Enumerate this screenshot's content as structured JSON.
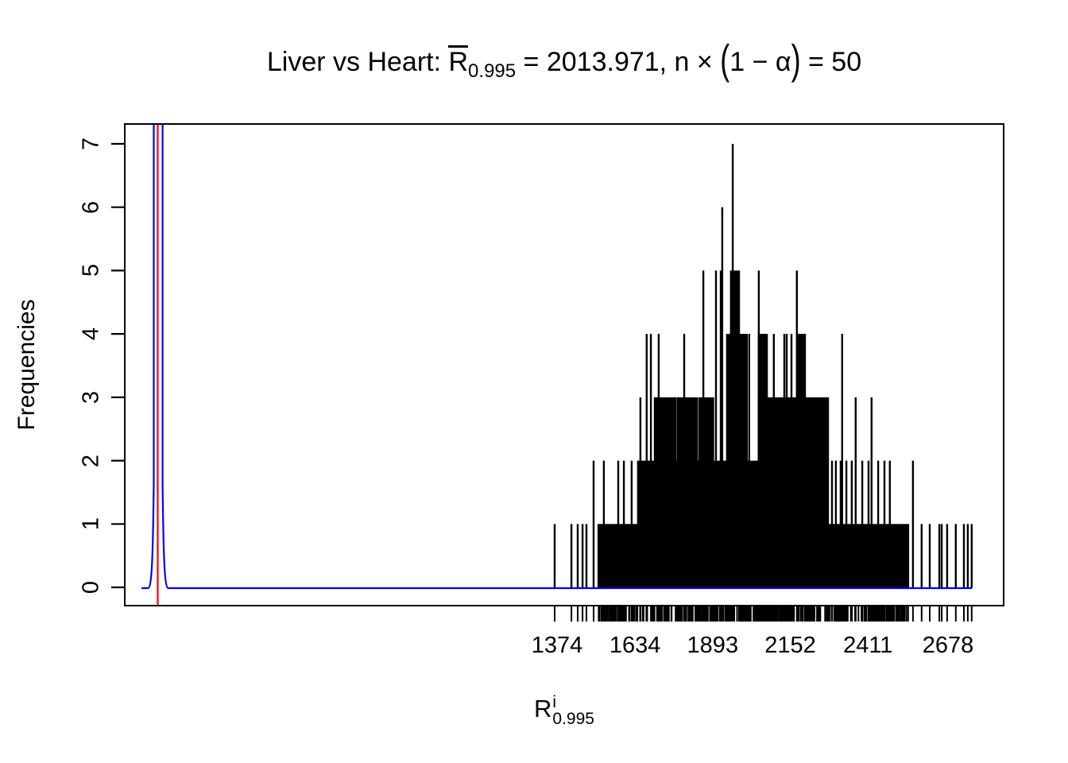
{
  "title": {
    "prefix": "Liver vs Heart: ",
    "r": "R",
    "r_sub": "0.995",
    "mid": " = 2013.971, n ",
    "times": "× ",
    "paren_open": "(",
    "paren_body": "1 − α",
    "paren_close": ")",
    "tail": " = 50"
  },
  "y_axis": {
    "label": "Frequencies",
    "ticks": [
      0,
      1,
      2,
      3,
      4,
      5,
      6,
      7
    ]
  },
  "x_axis": {
    "label_base": "R",
    "label_sup": "i",
    "label_sub": "0.995",
    "tick_values": [
      1374,
      1634,
      1893,
      2152,
      2411,
      2678
    ]
  },
  "chart_data": {
    "type": "bar",
    "subtype": "type-h spike plot of frequencies with rug of ticks at every unique value",
    "title": "Liver vs Heart: mean R_0.995 = 2013.971, n x (1 - alpha) = 50",
    "xlabel": "R^i_0.995",
    "ylabel": "Frequencies",
    "ylim": [
      0,
      7
    ],
    "x_tick_labels": [
      1374,
      1634,
      1893,
      2152,
      2411,
      2678
    ],
    "x_range": [
      1360,
      2760
    ],
    "grid": false,
    "legend": false,
    "spike_color": "#000000",
    "solid_bands": [
      {
        "from": 1512,
        "to": 2545,
        "h": 1
      },
      {
        "from": 1644,
        "to": 2246,
        "h": 2
      },
      {
        "from": 1700,
        "to": 1770,
        "h": 3
      },
      {
        "from": 1777,
        "to": 1840,
        "h": 3
      },
      {
        "from": 1848,
        "to": 1895,
        "h": 3
      },
      {
        "from": 2047,
        "to": 2212,
        "h": 3
      },
      {
        "from": 2214,
        "to": 2278,
        "h": 3
      },
      {
        "from": 1941,
        "to": 2007,
        "h": 4
      },
      {
        "from": 2047,
        "to": 2074,
        "h": 4
      },
      {
        "from": 2180,
        "to": 2201,
        "h": 4
      },
      {
        "from": 1954,
        "to": 1981,
        "h": 5
      }
    ],
    "spikes": [
      [
        1366,
        1
      ],
      [
        1422,
        1
      ],
      [
        1443,
        1
      ],
      [
        1459,
        1
      ],
      [
        1472,
        1
      ],
      [
        1496,
        2
      ],
      [
        1530,
        2
      ],
      [
        1578,
        2
      ],
      [
        1597,
        2
      ],
      [
        1623,
        2
      ],
      [
        1652,
        3
      ],
      [
        1673,
        4
      ],
      [
        1687,
        4
      ],
      [
        1713,
        4
      ],
      [
        1798,
        4
      ],
      [
        1862,
        5
      ],
      [
        1904,
        5
      ],
      [
        1920,
        5
      ],
      [
        1925,
        6
      ],
      [
        1960,
        7
      ],
      [
        2015,
        4
      ],
      [
        2047,
        5
      ],
      [
        2097,
        4
      ],
      [
        2132,
        4
      ],
      [
        2140,
        4
      ],
      [
        2156,
        4
      ],
      [
        2174,
        5
      ],
      [
        2325,
        4
      ],
      [
        2370,
        3
      ],
      [
        2423,
        3
      ],
      [
        2291,
        2
      ],
      [
        2304,
        2
      ],
      [
        2320,
        2
      ],
      [
        2339,
        2
      ],
      [
        2357,
        2
      ],
      [
        2392,
        2
      ],
      [
        2413,
        2
      ],
      [
        2445,
        2
      ],
      [
        2466,
        2
      ],
      [
        2484,
        2
      ],
      [
        2561,
        2
      ],
      [
        2590,
        1
      ],
      [
        2617,
        1
      ],
      [
        2649,
        1
      ],
      [
        2657,
        1
      ],
      [
        2675,
        1
      ],
      [
        2704,
        1
      ],
      [
        2731,
        1
      ],
      [
        2744,
        1
      ],
      [
        2757,
        1
      ]
    ],
    "rug": {
      "dense_from": 1512,
      "dense_to": 2545,
      "count": 400
    },
    "density_overlay": {
      "color": "#0000FF",
      "baseline_value": 0,
      "flat_from_frac": 0.019,
      "flat_to_frac": 0.9638,
      "peak_center_frac": 0.038,
      "peak_halfwidth_frac": 0.005,
      "clipped_at_top": true
    },
    "red_vline": {
      "color": "#FF0000",
      "x_frac": 0.0375
    }
  }
}
